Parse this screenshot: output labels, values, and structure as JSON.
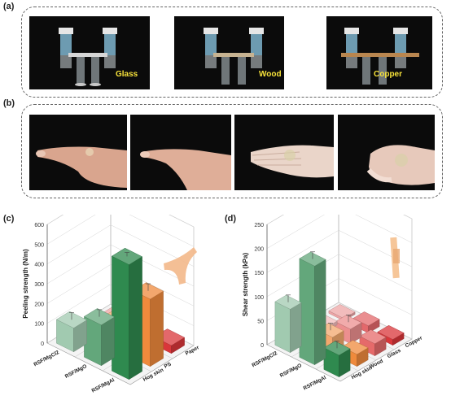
{
  "figure": {
    "panel_a": {
      "label": "(a)",
      "photos": [
        {
          "material": "Glass"
        },
        {
          "material": "Wood"
        },
        {
          "material": "Copper"
        }
      ]
    },
    "panel_b": {
      "label": "(b)",
      "photo_count": 4
    },
    "panel_c": {
      "label": "(c)",
      "z_label": "Peeling strength (N/m)",
      "z_ticks": [
        "0",
        "100",
        "200",
        "300",
        "400",
        "500",
        "600"
      ],
      "row_labels": [
        "RSF/MgCl2",
        "RSF/MgO",
        "RSF/MgAl"
      ],
      "col_labels": [
        "Paper",
        "PS",
        "Hog skin"
      ]
    },
    "panel_d": {
      "label": "(d)",
      "z_label": "Shear strength (kPa)",
      "z_ticks": [
        "0",
        "50",
        "100",
        "150",
        "200",
        "250"
      ],
      "row_labels": [
        "RSF/MgCl2",
        "RSF/MgO",
        "RSF/MgAl"
      ],
      "col_labels": [
        "Copper",
        "Glass",
        "Wood",
        "Hog skin"
      ]
    }
  },
  "chart_data": [
    {
      "type": "bar",
      "bar_style": "3d",
      "zlabel": "Peeling strength (N/m)",
      "zlim": [
        0,
        600
      ],
      "rows": [
        "RSF/MgCl2",
        "RSF/MgO",
        "RSF/MgAl"
      ],
      "columns": [
        "Hog skin",
        "PS",
        "Paper"
      ],
      "series": [
        {
          "name": "Hog skin",
          "values": [
            120,
            205,
            580
          ]
        },
        {
          "name": "PS",
          "values": [
            40,
            145,
            340
          ]
        },
        {
          "name": "Paper",
          "values": [
            10,
            50,
            40
          ]
        }
      ],
      "colors": {
        "Hog skin": "#2f8a4f",
        "PS": "#ef8a3c",
        "Paper": "#d9363a"
      }
    },
    {
      "type": "bar",
      "bar_style": "3d",
      "zlabel": "Shear strength (kPa)",
      "zlim": [
        0,
        250
      ],
      "rows": [
        "RSF/MgCl2",
        "RSF/MgO",
        "RSF/MgAl"
      ],
      "columns": [
        "Hog skin",
        "Wood",
        "Glass",
        "Copper"
      ],
      "series": [
        {
          "name": "Hog skin",
          "values": [
            90,
            205,
            45
          ]
        },
        {
          "name": "Wood",
          "values": [
            12,
            35,
            25
          ]
        },
        {
          "name": "Glass",
          "values": [
            8,
            30,
            25
          ]
        },
        {
          "name": "Copper",
          "values": [
            5,
            15,
            12
          ]
        }
      ],
      "colors": {
        "Hog skin": "#2f8a4f",
        "Wood": "#ef8a3c",
        "Glass": "#e56a6a",
        "Copper": "#d9363a"
      }
    }
  ]
}
